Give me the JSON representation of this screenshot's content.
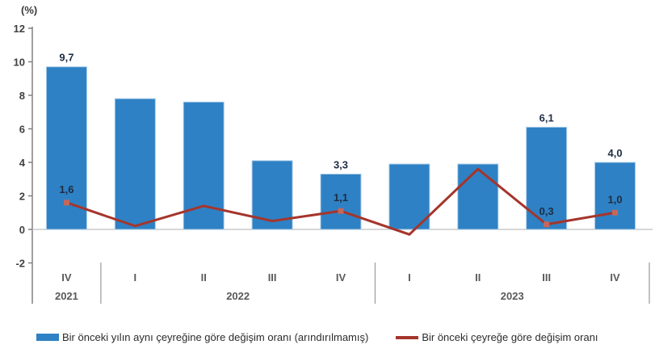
{
  "chart_data": {
    "type": "bar+line",
    "unit_label": "(%)",
    "categories": [
      "IV",
      "I",
      "II",
      "III",
      "IV",
      "I",
      "II",
      "III",
      "IV"
    ],
    "year_groups": [
      {
        "label": "2021",
        "count": 1
      },
      {
        "label": "2022",
        "count": 4
      },
      {
        "label": "2023",
        "count": 4
      }
    ],
    "ylim": [
      -2,
      12
    ],
    "ytick_step": 2,
    "grid": false,
    "legend_position": "bottom",
    "series": [
      {
        "name": "Bir önceki yılın aynı çeyreğine göre değişim oranı (arındırılmamış)",
        "type": "bar",
        "color": "#2E81C4",
        "border_color": "#A9CCE9",
        "values": [
          9.7,
          7.8,
          7.6,
          4.1,
          3.3,
          3.9,
          3.9,
          6.1,
          4.0
        ],
        "labeled_points": [
          0,
          4,
          7,
          8
        ]
      },
      {
        "name": "Bir önceki çeyreğe göre değişim oranı",
        "type": "line",
        "color": "#A5352C",
        "marker_color": "#C4685C",
        "values": [
          1.6,
          0.2,
          1.4,
          0.5,
          1.1,
          -0.3,
          3.6,
          0.3,
          1.0
        ],
        "labeled_points": [
          0,
          4,
          7,
          8
        ]
      }
    ],
    "colors": {
      "value_label": "#1F2D44",
      "axis": "#808080",
      "tick_label": "#404040",
      "category_label": "#595959",
      "zero_line": "#BFBFBF",
      "separator": "#9B9B9B"
    }
  }
}
